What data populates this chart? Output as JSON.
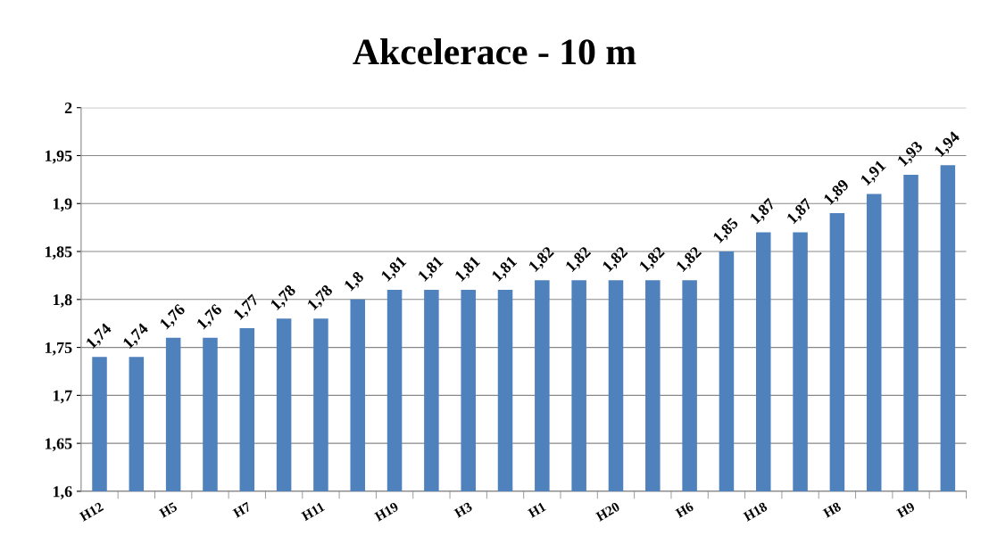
{
  "chart_data": {
    "type": "bar",
    "title": "Akcelerace - 10 m",
    "categories": [
      "H12",
      null,
      "H5",
      null,
      "H7",
      null,
      "H11",
      null,
      "H19",
      null,
      "H3",
      null,
      "H1",
      null,
      "H20",
      null,
      "H6",
      null,
      "H18",
      null,
      "H8",
      null,
      "H9",
      null
    ],
    "values": [
      1.74,
      1.74,
      1.76,
      1.76,
      1.77,
      1.78,
      1.78,
      1.8,
      1.81,
      1.81,
      1.81,
      1.81,
      1.82,
      1.82,
      1.82,
      1.82,
      1.82,
      1.85,
      1.87,
      1.87,
      1.89,
      1.91,
      1.93,
      1.94
    ],
    "value_labels": [
      "1,74",
      "1,74",
      "1,76",
      "1,76",
      "1,77",
      "1,78",
      "1,78",
      "1,8",
      "1,81",
      "1,81",
      "1,81",
      "1,81",
      "1,82",
      "1,82",
      "1,82",
      "1,82",
      "1,82",
      "1,85",
      "1,87",
      "1,87",
      "1,89",
      "1,91",
      "1,93",
      "1,94"
    ],
    "color": "#4f81bd",
    "ylim": [
      1.6,
      2
    ],
    "yticks": [
      {
        "value": 1.6,
        "label": "1,6"
      },
      {
        "value": 1.65,
        "label": "1,65"
      },
      {
        "value": 1.7,
        "label": "1,7"
      },
      {
        "value": 1.75,
        "label": "1,75"
      },
      {
        "value": 1.8,
        "label": "1,8"
      },
      {
        "value": 1.85,
        "label": "1,85"
      },
      {
        "value": 1.9,
        "label": "1,9"
      },
      {
        "value": 1.95,
        "label": "1,95"
      },
      {
        "value": 2,
        "label": "2"
      }
    ],
    "grid": "y",
    "legend": false
  }
}
